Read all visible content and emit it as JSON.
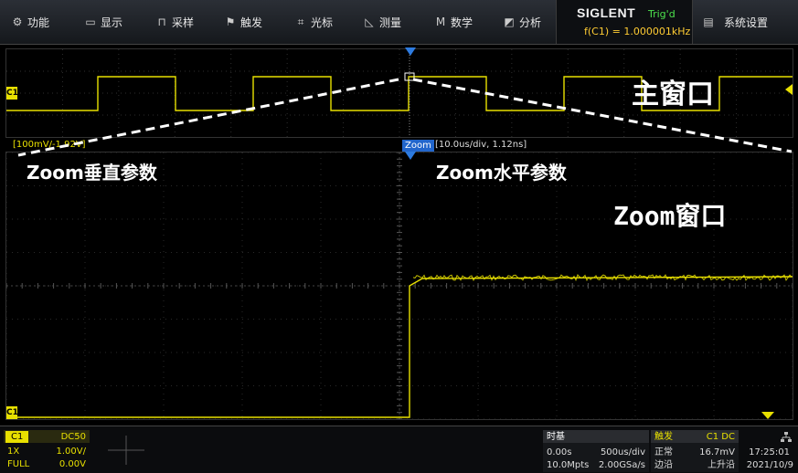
{
  "menu": [
    {
      "icon": "⚙",
      "label": "功能"
    },
    {
      "icon": "▭",
      "label": "显示"
    },
    {
      "icon": "⊓",
      "label": "采样"
    },
    {
      "icon": "⚑",
      "label": "触发"
    },
    {
      "icon": "⌗",
      "label": "光标"
    },
    {
      "icon": "◺",
      "label": "测量"
    },
    {
      "icon": "M",
      "label": "数学"
    },
    {
      "icon": "◩",
      "label": "分析"
    }
  ],
  "brand": {
    "name": "SIGLENT",
    "trig_state": "Trig'd",
    "freq": "f(C1) = 1.000001kHz"
  },
  "settings": {
    "icon": "▤",
    "label": "系统设置"
  },
  "main_window": {
    "channel_tag": "C1",
    "annotation": "主窗口"
  },
  "zoom_window": {
    "channel_tag": "C1",
    "vertical_label": "[100mV/-1.92V]",
    "badge": "Zoom",
    "horizontal_label": "[10.0us/div, 1.12ns]",
    "annotation_vertical": "Zoom垂直参数",
    "annotation_horizontal": "Zoom水平参数",
    "annotation_window": "Zoom窗口"
  },
  "channel_panel": {
    "name": "C1",
    "coupling": "DC50",
    "probe": "1X",
    "scale": "1.00V/",
    "bandwidth": "FULL",
    "offset": "0.00V"
  },
  "timebase": {
    "title": "时基",
    "delay": "0.00s",
    "scale": "500us/div",
    "depth": "10.0Mpts",
    "rate": "2.00GSa/s"
  },
  "trigger": {
    "title": "触发",
    "source": "C1 DC",
    "mode": "正常",
    "level": "16.7mV",
    "type": "边沿",
    "slope": "上升沿"
  },
  "clock": {
    "time": "17:25:01",
    "date": "2021/10/9"
  },
  "colors": {
    "channel": "#e8e000",
    "accent": "#2266cc",
    "trig_green": "#4de24d"
  }
}
